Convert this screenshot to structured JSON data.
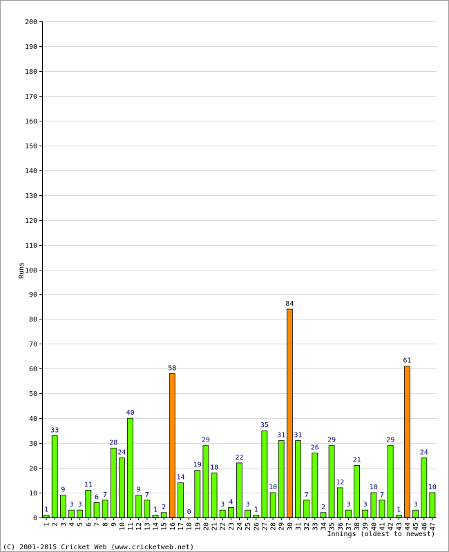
{
  "chart_data": {
    "type": "bar",
    "ylabel": "Runs",
    "xlabel": "Innings (oldest to newest)",
    "ylim": [
      0,
      200
    ],
    "ytick_step": 10,
    "grid": true,
    "categories": [
      "1",
      "2",
      "3",
      "4",
      "5",
      "6",
      "7",
      "8",
      "9",
      "10",
      "11",
      "12",
      "13",
      "14",
      "15",
      "16",
      "17",
      "18",
      "19",
      "20",
      "21",
      "22",
      "23",
      "24",
      "25",
      "26",
      "27",
      "28",
      "29",
      "30",
      "31",
      "32",
      "33",
      "34",
      "35",
      "36",
      "37",
      "38",
      "39",
      "40",
      "41",
      "42",
      "43",
      "44",
      "45",
      "46",
      "47"
    ],
    "values": [
      1,
      33,
      9,
      3,
      3,
      11,
      6,
      7,
      28,
      24,
      40,
      9,
      7,
      1,
      2,
      58,
      14,
      0,
      19,
      29,
      18,
      3,
      4,
      22,
      3,
      1,
      35,
      10,
      31,
      84,
      31,
      7,
      26,
      2,
      29,
      12,
      3,
      21,
      3,
      10,
      7,
      29,
      1,
      61,
      3,
      24,
      10
    ],
    "highlight_threshold": 50,
    "colors": {
      "bar_normal": "#66ff00",
      "bar_highlight": "#ff8800",
      "bar_stroke": "#000000",
      "label_normal": "#000080",
      "label_highlight": "#000000",
      "grid": "#d8d8d8",
      "axis": "#000000"
    }
  },
  "footer": {
    "copyright": "(C) 2001-2015 Cricket Web (www.cricketweb.net)"
  }
}
